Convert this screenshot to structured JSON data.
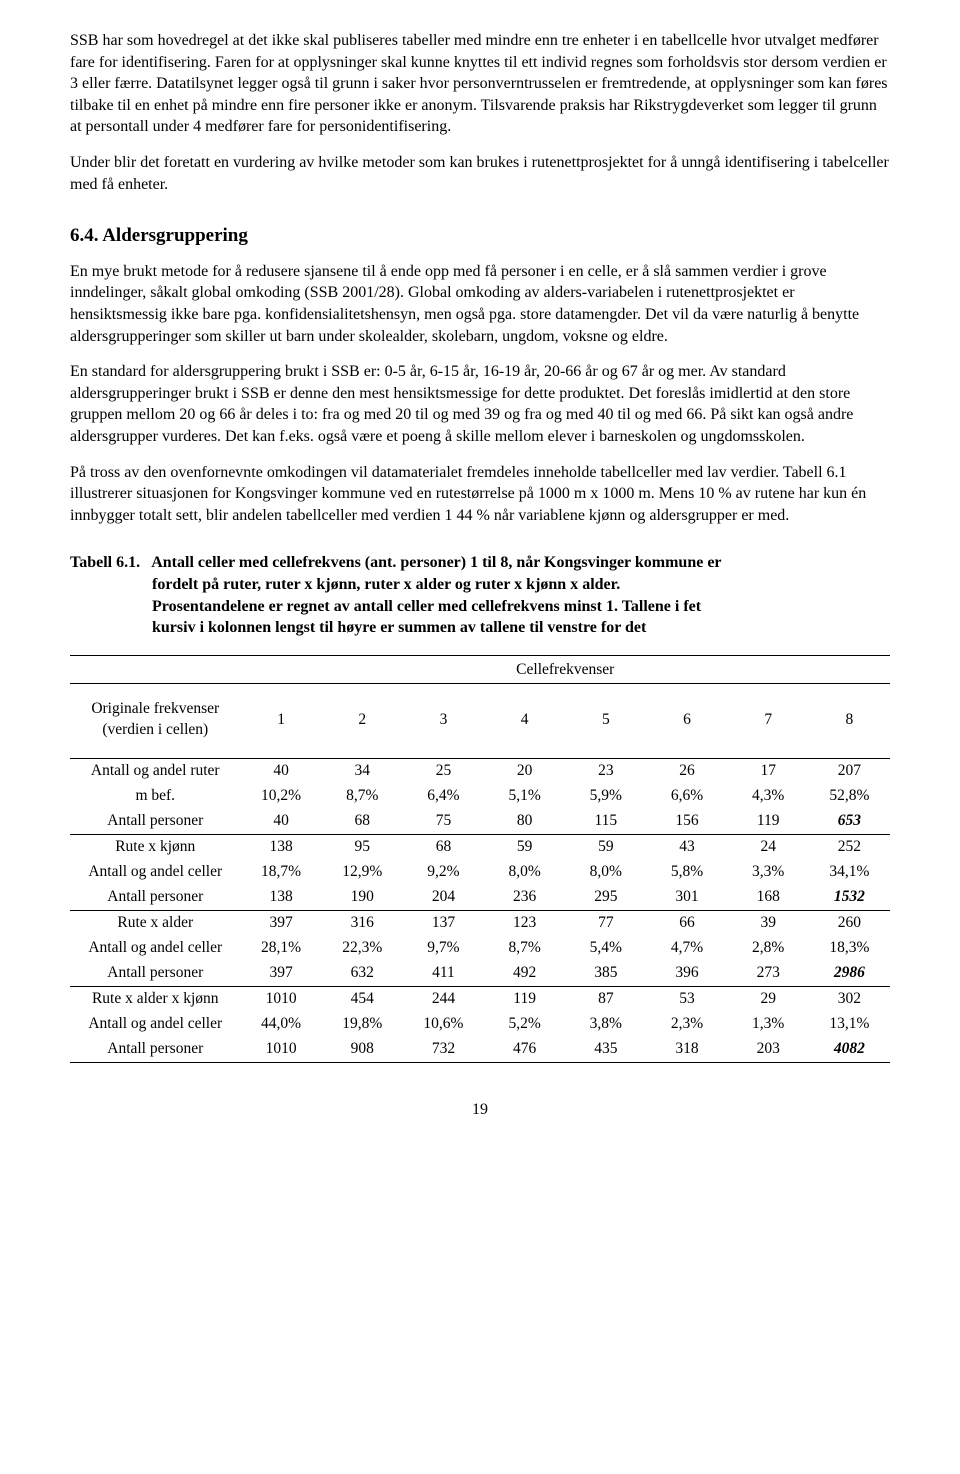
{
  "paragraphs": {
    "p1": "SSB har som hovedregel at det ikke skal publiseres tabeller med mindre enn tre enheter i en tabellcelle hvor utvalget medfører fare for identifisering. Faren for at opplysninger skal kunne knyttes til ett individ regnes som forholdsvis stor dersom verdien er 3 eller færre. Datatilsynet legger også til grunn i saker hvor personverntrusselen er fremtredende, at opplysninger som kan føres tilbake til en enhet på mindre enn fire personer ikke er anonym. Tilsvarende praksis har Rikstrygdeverket som legger til grunn at persontall under 4 medfører fare for personidentifisering.",
    "p2": "Under blir det foretatt en vurdering av hvilke metoder som kan brukes i rutenettprosjektet for å unngå identifisering i tabelceller med få enheter.",
    "h64": "6.4.   Aldersgruppering",
    "p3": "En mye brukt metode for å redusere sjansene til å ende opp med få personer i en celle, er å slå sammen verdier i grove inndelinger, såkalt global omkoding (SSB 2001/28). Global omkoding av alders-variabelen i rutenettprosjektet er hensiktsmessig ikke bare pga. konfidensialitetshensyn, men også pga. store datamengder. Det vil da være naturlig å benytte aldersgrupperinger som skiller ut barn under skolealder, skolebarn, ungdom, voksne og eldre.",
    "p4": "En standard for aldersgruppering brukt i SSB er: 0-5 år, 6-15 år, 16-19 år, 20-66 år og 67 år og mer. Av standard aldersgrupperinger brukt i SSB er denne den mest hensiktsmessige for dette produktet. Det foreslås imidlertid at den store gruppen mellom 20 og 66 år deles i to: fra og med 20 til og med 39 og fra og med 40 til og med 66. På sikt kan også andre aldersgrupper vurderes. Det kan f.eks. også være et poeng å skille mellom elever i barneskolen og ungdomsskolen.",
    "p5": "På tross av den ovenfornevnte omkodingen vil datamaterialet fremdeles inneholde tabellceller med lav verdier. Tabell 6.1 illustrerer situasjonen for Kongsvinger kommune ved en rutestørrelse på 1000 m x 1000 m. Mens 10 % av rutene har kun én innbygger totalt sett, blir andelen tabellceller med verdien 1 44 % når variablene kjønn og aldersgrupper er med."
  },
  "table": {
    "title_prefix": "Tabell 6.1.",
    "title_line1": "Antall celler med cellefrekvens (ant. personer) 1 til 8, når Kongsvinger kommune er",
    "title_line2": "fordelt på ruter, ruter x kjønn, ruter x alder og ruter x kjønn x alder.",
    "title_line3": "Prosentandelene er regnet av antall celler med cellefrekvens minst 1. Tallene i fet",
    "title_line4": "kursiv i kolonnen lengst til høyre er summen av tallene til venstre for det",
    "cellfreq_label": "Cellefrekvenser",
    "leftheader_line1": "Originale frekvenser",
    "leftheader_line2": "(verdien i cellen)",
    "colnums": [
      "1",
      "2",
      "3",
      "4",
      "5",
      "6",
      "7",
      "8"
    ],
    "groups": [
      {
        "rows": [
          {
            "label": "Antall og andel ruter",
            "vals": [
              "40",
              "34",
              "25",
              "20",
              "23",
              "26",
              "17",
              "207"
            ]
          },
          {
            "label": "m bef.",
            "vals": [
              "10,2%",
              "8,7%",
              "6,4%",
              "5,1%",
              "5,9%",
              "6,6%",
              "4,3%",
              "52,8%"
            ]
          },
          {
            "label": "Antall personer",
            "vals": [
              "40",
              "68",
              "75",
              "80",
              "115",
              "156",
              "119",
              "653"
            ],
            "lastBoldItalic": true
          }
        ]
      },
      {
        "rows": [
          {
            "label": "Rute x kjønn",
            "vals": [
              "138",
              "95",
              "68",
              "59",
              "59",
              "43",
              "24",
              "252"
            ]
          },
          {
            "label": "Antall og andel celler",
            "vals": [
              "18,7%",
              "12,9%",
              "9,2%",
              "8,0%",
              "8,0%",
              "5,8%",
              "3,3%",
              "34,1%"
            ]
          },
          {
            "label": "Antall personer",
            "vals": [
              "138",
              "190",
              "204",
              "236",
              "295",
              "301",
              "168",
              "1532"
            ],
            "lastBoldItalic": true
          }
        ]
      },
      {
        "rows": [
          {
            "label": "Rute x alder",
            "vals": [
              "397",
              "316",
              "137",
              "123",
              "77",
              "66",
              "39",
              "260"
            ]
          },
          {
            "label": "Antall og andel celler",
            "vals": [
              "28,1%",
              "22,3%",
              "9,7%",
              "8,7%",
              "5,4%",
              "4,7%",
              "2,8%",
              "18,3%"
            ]
          },
          {
            "label": "Antall personer",
            "vals": [
              "397",
              "632",
              "411",
              "492",
              "385",
              "396",
              "273",
              "2986"
            ],
            "lastBoldItalic": true
          }
        ]
      },
      {
        "rows": [
          {
            "label": "Rute x alder x kjønn",
            "vals": [
              "1010",
              "454",
              "244",
              "119",
              "87",
              "53",
              "29",
              "302"
            ]
          },
          {
            "label": "Antall og andel celler",
            "vals": [
              "44,0%",
              "19,8%",
              "10,6%",
              "5,2%",
              "3,8%",
              "2,3%",
              "1,3%",
              "13,1%"
            ]
          },
          {
            "label": "Antall personer",
            "vals": [
              "1010",
              "908",
              "732",
              "476",
              "435",
              "318",
              "203",
              "4082"
            ],
            "lastBoldItalic": true
          }
        ]
      }
    ]
  },
  "page_number": "19"
}
